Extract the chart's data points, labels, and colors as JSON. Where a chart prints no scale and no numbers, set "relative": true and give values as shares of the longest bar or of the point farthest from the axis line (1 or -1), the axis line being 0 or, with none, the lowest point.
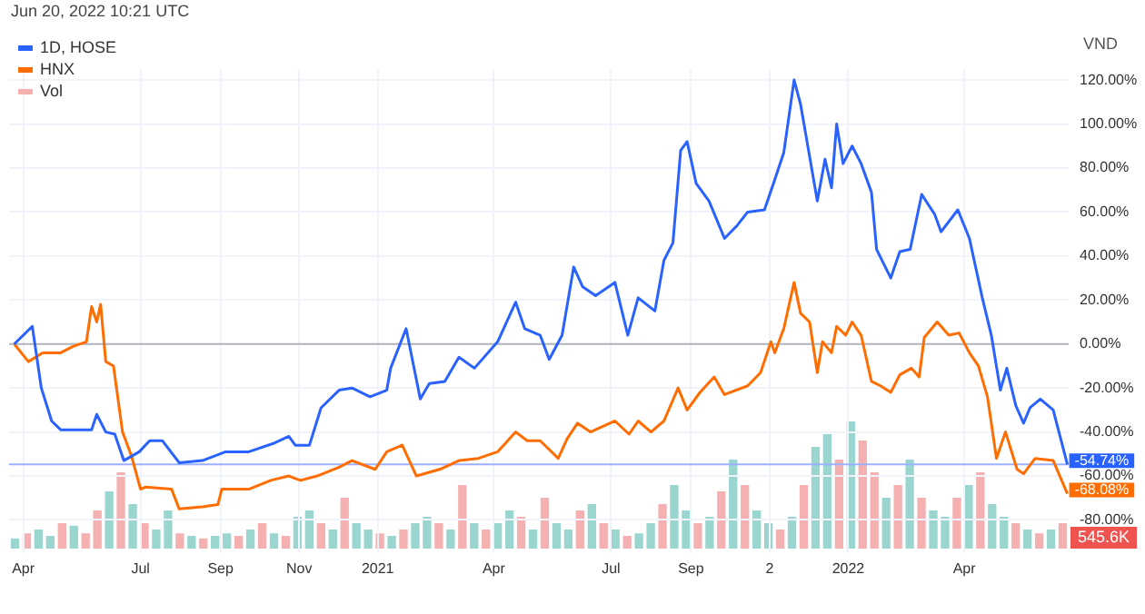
{
  "chart_data": [
    {
      "type": "line",
      "ylabel": "VND",
      "legend": "top left",
      "marker": "none",
      "grid": true,
      "annotations": [
        "Jun 20, 2022 10:21 UTC",
        {
          "text": "-54.74%",
          "x": "2022-06-20",
          "y": -54.74
        },
        {
          "text": "-68.08%",
          "x": "2022-06-20",
          "y": -68.08
        }
      ],
      "xlim": [
        "2020-03-21",
        "2022-06-21"
      ],
      "xticks": [
        {
          "value": "2020-04-01",
          "label": "Apr"
        },
        {
          "value": "2020-07-01",
          "label": "Jul"
        },
        {
          "value": "2020-09-01",
          "label": "Sep"
        },
        {
          "value": "2020-11-01",
          "label": "Nov"
        },
        {
          "value": "2021-01-01",
          "label": "2021"
        },
        {
          "value": "2021-04-01",
          "label": "Apr"
        },
        {
          "value": "2021-07-01",
          "label": "Jul"
        },
        {
          "value": "2021-09-01",
          "label": "Sep"
        },
        {
          "value": "2021-11-01",
          "label": "2"
        },
        {
          "value": "2022-01-01",
          "label": "2022"
        },
        {
          "value": "2022-04-01",
          "label": "Apr"
        }
      ],
      "ylim": [
        -95,
        125
      ],
      "yticks": [
        {
          "value": -80,
          "label": "-80.00%"
        },
        {
          "value": -60,
          "label": "-60.00%"
        },
        {
          "value": -40,
          "label": "-40.00%"
        },
        {
          "value": -20,
          "label": "-20.00%"
        },
        {
          "value": 0,
          "label": "0.00%"
        },
        {
          "value": 20,
          "label": "20.00%"
        },
        {
          "value": 40,
          "label": "40.00%"
        },
        {
          "value": 60,
          "label": "60.00%"
        },
        {
          "value": 80,
          "label": "80.00%"
        },
        {
          "value": 100,
          "label": "100.00%"
        },
        {
          "value": 120,
          "label": "120.00%"
        }
      ],
      "ref_lines": [
        {
          "axis": "y",
          "value": 0,
          "color": "#b2b5be"
        },
        {
          "axis": "y",
          "value": -54.74,
          "color": "#9db2ff"
        }
      ],
      "series": [
        {
          "name": "1D, HOSE",
          "color": "#2962ff",
          "x": [
            "2020-03-25",
            "2020-04-08",
            "2020-04-15",
            "2020-04-23",
            "2020-04-30",
            "2020-05-24",
            "2020-05-28",
            "2020-06-04",
            "2020-06-11",
            "2020-06-18",
            "2020-06-30",
            "2020-07-08",
            "2020-07-18",
            "2020-07-31",
            "2020-08-18",
            "2020-09-05",
            "2020-09-23",
            "2020-10-13",
            "2020-10-24",
            "2020-10-29",
            "2020-11-09",
            "2020-11-18",
            "2020-12-02",
            "2020-12-12",
            "2020-12-26",
            "2021-01-08",
            "2021-01-11",
            "2021-01-23",
            "2021-02-03",
            "2021-02-10",
            "2021-02-22",
            "2021-03-05",
            "2021-03-17",
            "2021-04-04",
            "2021-04-18",
            "2021-04-25",
            "2021-05-07",
            "2021-05-14",
            "2021-05-24",
            "2021-06-02",
            "2021-06-09",
            "2021-06-19",
            "2021-07-04",
            "2021-07-14",
            "2021-07-22",
            "2021-08-04",
            "2021-08-11",
            "2021-08-18",
            "2021-08-24",
            "2021-08-29",
            "2021-09-05",
            "2021-09-15",
            "2021-09-27",
            "2021-10-07",
            "2021-10-15",
            "2021-10-28",
            "2021-11-04",
            "2021-11-12",
            "2021-11-20",
            "2021-11-25",
            "2021-12-08",
            "2021-12-14",
            "2021-12-19",
            "2021-12-23",
            "2021-12-28",
            "2022-01-04",
            "2022-01-11",
            "2022-01-19",
            "2022-01-23",
            "2022-02-03",
            "2022-02-10",
            "2022-02-18",
            "2022-02-27",
            "2022-03-09",
            "2022-03-14",
            "2022-03-27",
            "2022-04-05",
            "2022-04-15",
            "2022-04-22",
            "2022-04-29",
            "2022-05-04",
            "2022-05-11",
            "2022-05-17",
            "2022-05-22",
            "2022-05-30",
            "2022-06-09",
            "2022-06-20"
          ],
          "values": [
            0,
            8,
            -20,
            -35,
            -39,
            -39,
            -32,
            -40,
            -41,
            -53,
            -49,
            -44,
            -44,
            -54,
            -53,
            -49,
            -49,
            -45,
            -42,
            -46,
            -46,
            -29,
            -21,
            -20,
            -24,
            -21,
            -11,
            7,
            -25,
            -18,
            -17,
            -6,
            -11,
            1,
            19,
            7,
            4,
            -7,
            4,
            35,
            26,
            22,
            28,
            4,
            21,
            15,
            38,
            46,
            88,
            92,
            73,
            65,
            48,
            54,
            60,
            61,
            73,
            87,
            120,
            109,
            65,
            84,
            71,
            100,
            82,
            90,
            82,
            69,
            43,
            30,
            42,
            43,
            68,
            59,
            51,
            61,
            48,
            21,
            4,
            -21,
            -11,
            -28,
            -36,
            -29,
            -25,
            -30,
            -54.74
          ]
        },
        {
          "name": "HNX",
          "color": "#ff6d00",
          "x": [
            "2020-03-25",
            "2020-04-05",
            "2020-04-16",
            "2020-04-30",
            "2020-05-10",
            "2020-05-20",
            "2020-05-24",
            "2020-05-28",
            "2020-05-31",
            "2020-06-04",
            "2020-06-10",
            "2020-06-17",
            "2020-06-24",
            "2020-07-01",
            "2020-07-05",
            "2020-07-25",
            "2020-07-31",
            "2020-08-18",
            "2020-08-30",
            "2020-09-02",
            "2020-09-23",
            "2020-10-10",
            "2020-10-24",
            "2020-11-02",
            "2020-11-15",
            "2020-12-02",
            "2020-12-12",
            "2020-12-30",
            "2021-01-08",
            "2021-01-20",
            "2021-01-31",
            "2021-02-18",
            "2021-03-05",
            "2021-03-20",
            "2021-04-04",
            "2021-04-18",
            "2021-04-27",
            "2021-05-07",
            "2021-05-21",
            "2021-05-28",
            "2021-06-05",
            "2021-06-15",
            "2021-07-04",
            "2021-07-15",
            "2021-07-22",
            "2021-08-01",
            "2021-08-11",
            "2021-08-22",
            "2021-08-29",
            "2021-09-08",
            "2021-09-19",
            "2021-09-27",
            "2021-10-15",
            "2021-10-25",
            "2021-11-02",
            "2021-11-05",
            "2021-11-12",
            "2021-11-20",
            "2021-11-25",
            "2021-12-02",
            "2021-12-08",
            "2021-12-12",
            "2021-12-19",
            "2021-12-23",
            "2021-12-30",
            "2022-01-04",
            "2022-01-11",
            "2022-01-19",
            "2022-01-26",
            "2022-02-03",
            "2022-02-10",
            "2022-02-19",
            "2022-02-25",
            "2022-03-01",
            "2022-03-11",
            "2022-03-20",
            "2022-03-28",
            "2022-04-05",
            "2022-04-12",
            "2022-04-19",
            "2022-04-26",
            "2022-05-03",
            "2022-05-12",
            "2022-05-17",
            "2022-05-26",
            "2022-06-09",
            "2022-06-20"
          ],
          "values": [
            0,
            -8,
            -4,
            -4,
            -1,
            1,
            17,
            10,
            18,
            -8,
            -10,
            -40,
            -51,
            -66,
            -65,
            -66,
            -75,
            -74,
            -73,
            -66,
            -66,
            -62,
            -60,
            -62,
            -60,
            -56,
            -53,
            -57,
            -49,
            -46,
            -60,
            -57,
            -53,
            -52,
            -49,
            -40,
            -44,
            -44,
            -52,
            -43,
            -36,
            -40,
            -35,
            -41,
            -35,
            -40,
            -35,
            -20,
            -30,
            -22,
            -15,
            -23,
            -19,
            -13,
            1,
            -4,
            7,
            28,
            14,
            10,
            -13,
            1,
            -4,
            8,
            4,
            10,
            4,
            -17,
            -19,
            -22,
            -14,
            -11,
            -15,
            3,
            10,
            4,
            5,
            -4,
            -10,
            -24,
            -52,
            -40,
            -57,
            -59,
            -52,
            -53,
            -68.08
          ]
        }
      ]
    },
    {
      "type": "bar",
      "relative": true,
      "legend": "top left",
      "annotations": [
        "545.6K"
      ],
      "categories": [
        null,
        null,
        null,
        null,
        null,
        null,
        null,
        null,
        null,
        null,
        null,
        null,
        null,
        null,
        null,
        null,
        null,
        null,
        null,
        null,
        null,
        null,
        null,
        null,
        null,
        null,
        null,
        null,
        null,
        null,
        null,
        null,
        null,
        null,
        null,
        null,
        null,
        null,
        null,
        null,
        null,
        null,
        null,
        null,
        null,
        null,
        null,
        null,
        null,
        null,
        null,
        null,
        null,
        null,
        null,
        null,
        null,
        null,
        null,
        null,
        null,
        null,
        null,
        null,
        null,
        null,
        null,
        null,
        null,
        null,
        null,
        null,
        null,
        null,
        null,
        null,
        null,
        null,
        null,
        null,
        null,
        null,
        null,
        null,
        null,
        null,
        null,
        null,
        null,
        null
      ],
      "series": [
        {
          "name": "Vol",
          "colors": [
            "#9ad6cf",
            "#f5b1b1",
            "#9ad6cf",
            "#9ad6cf",
            "#f5b1b1",
            "#9ad6cf",
            "#f5b1b1",
            "#f5b1b1",
            "#9ad6cf",
            "#f5b1b1",
            "#9ad6cf",
            "#f5b1b1",
            "#9ad6cf",
            "#9ad6cf",
            "#f5b1b1",
            "#9ad6cf",
            "#f5b1b1",
            "#9ad6cf",
            "#9ad6cf",
            "#f5b1b1",
            "#9ad6cf",
            "#f5b1b1",
            "#9ad6cf",
            "#f5b1b1",
            "#9ad6cf",
            "#9ad6cf",
            "#f5b1b1",
            "#9ad6cf",
            "#f5b1b1",
            "#9ad6cf",
            "#9ad6cf",
            "#f5b1b1",
            "#9ad6cf",
            "#f5b1b1",
            "#9ad6cf",
            "#9ad6cf",
            "#f5b1b1",
            "#9ad6cf",
            "#f5b1b1",
            "#9ad6cf",
            "#f5b1b1",
            "#9ad6cf",
            "#9ad6cf",
            "#f5b1b1",
            "#9ad6cf",
            "#f5b1b1",
            "#9ad6cf",
            "#9ad6cf",
            "#f5b1b1",
            "#9ad6cf",
            "#f5b1b1",
            "#9ad6cf",
            "#f5b1b1",
            "#9ad6cf",
            "#9ad6cf",
            "#f5b1b1",
            "#9ad6cf",
            "#9ad6cf",
            "#f5b1b1",
            "#9ad6cf",
            "#f5b1b1",
            "#9ad6cf",
            "#f5b1b1",
            "#9ad6cf",
            "#9ad6cf",
            "#f5b1b1",
            "#9ad6cf",
            "#f5b1b1",
            "#9ad6cf",
            "#9ad6cf",
            "#f5b1b1",
            "#9ad6cf",
            "#f5b1b1",
            "#f5b1b1",
            "#9ad6cf",
            "#f5b1b1",
            "#9ad6cf",
            "#f5b1b1",
            "#9ad6cf",
            "#9ad6cf",
            "#f5b1b1",
            "#9ad6cf",
            "#f5b1b1",
            "#9ad6cf",
            "#9ad6cf",
            "#f5b1b1",
            "#9ad6cf",
            "#f5b1b1",
            "#9ad6cf",
            "#f5b1b1"
          ],
          "values": [
            0.08,
            0.12,
            0.15,
            0.1,
            0.2,
            0.18,
            0.12,
            0.3,
            0.45,
            0.6,
            0.35,
            0.2,
            0.15,
            0.3,
            0.12,
            0.1,
            0.08,
            0.1,
            0.12,
            0.1,
            0.15,
            0.2,
            0.12,
            0.1,
            0.25,
            0.3,
            0.2,
            0.15,
            0.4,
            0.2,
            0.15,
            0.12,
            0.1,
            0.15,
            0.2,
            0.25,
            0.2,
            0.15,
            0.5,
            0.2,
            0.15,
            0.2,
            0.3,
            0.25,
            0.15,
            0.4,
            0.2,
            0.15,
            0.3,
            0.35,
            0.2,
            0.15,
            0.1,
            0.12,
            0.2,
            0.35,
            0.5,
            0.3,
            0.2,
            0.25,
            0.45,
            0.7,
            0.5,
            0.3,
            0.2,
            0.15,
            0.25,
            0.5,
            0.8,
            0.9,
            0.7,
            1,
            0.85,
            0.6,
            0.4,
            0.5,
            0.7,
            0.4,
            0.3,
            0.25,
            0.4,
            0.5,
            0.6,
            0.35,
            0.25,
            0.2,
            0.15,
            0.12,
            0.15,
            0.2
          ]
        }
      ]
    }
  ]
}
